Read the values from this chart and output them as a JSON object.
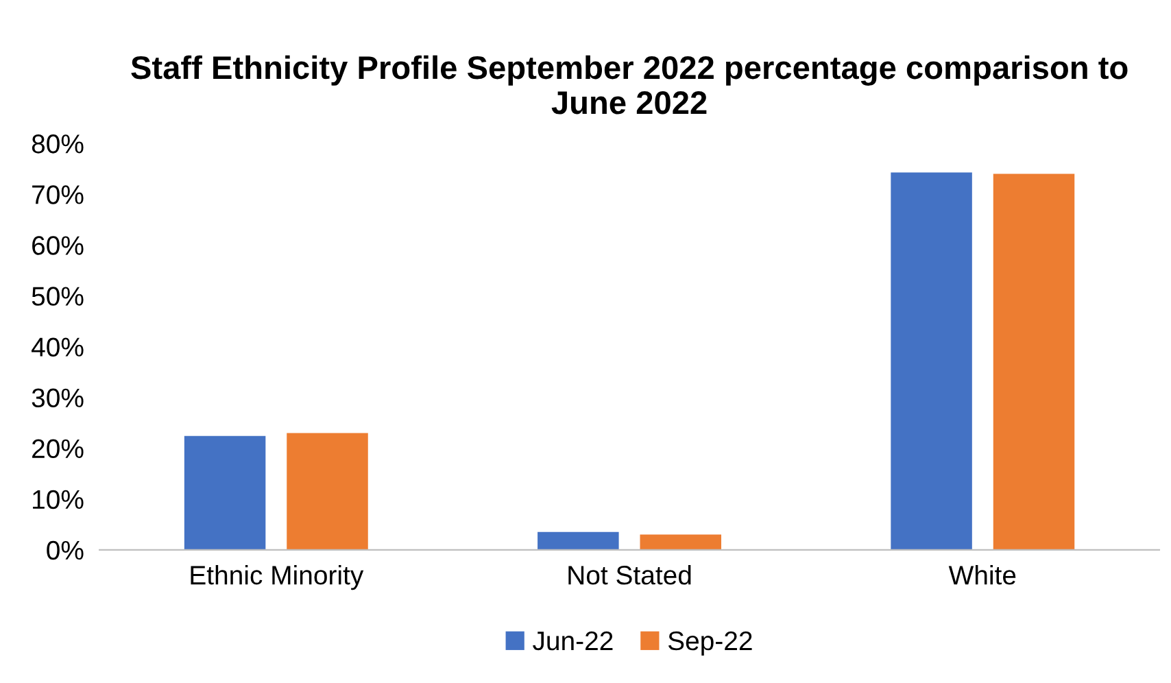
{
  "chart_data": {
    "type": "bar",
    "title": "Staff Ethnicity Profile September 2022 percentage comparison to June 2022",
    "categories": [
      "Ethnic Minority",
      "Not Stated",
      "White"
    ],
    "series": [
      {
        "name": "Jun-22",
        "color": "#4472c4",
        "values": [
          22.4,
          3.5,
          74.3
        ]
      },
      {
        "name": "Sep-22",
        "color": "#ed7d31",
        "values": [
          23.0,
          3.0,
          74.0
        ]
      }
    ],
    "ylim": [
      0,
      80
    ],
    "yticks": [
      {
        "value": 0,
        "label": "0%"
      },
      {
        "value": 10,
        "label": "10%"
      },
      {
        "value": 20,
        "label": "20%"
      },
      {
        "value": 30,
        "label": "30%"
      },
      {
        "value": 40,
        "label": "40%"
      },
      {
        "value": 50,
        "label": "50%"
      },
      {
        "value": 60,
        "label": "60%"
      },
      {
        "value": 70,
        "label": "70%"
      },
      {
        "value": 80,
        "label": "80%"
      }
    ],
    "grid": false,
    "legend": "bottom"
  }
}
